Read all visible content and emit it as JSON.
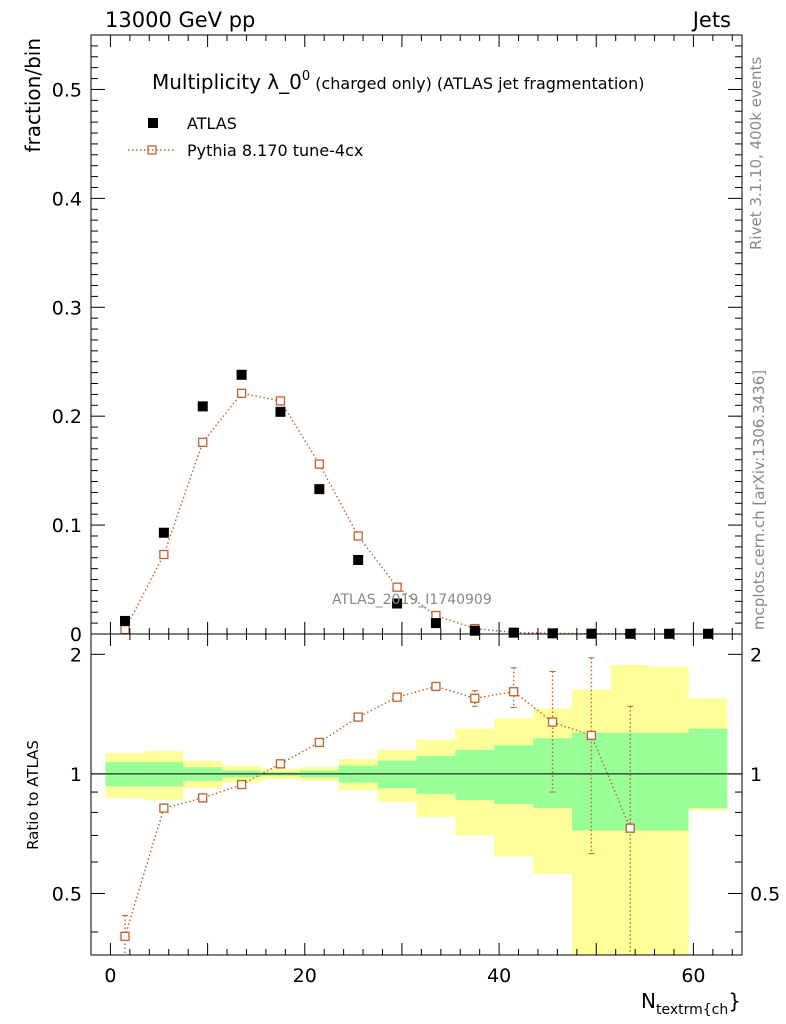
{
  "header": {
    "left": "13000 GeV pp",
    "right": "Jets"
  },
  "side_text": {
    "rivet": "Rivet 3.1.10,  400k events",
    "mcplots": "mcplots.cern.ch [arXiv:1306.3436]"
  },
  "watermark": "ATLAS_2019_I1740909",
  "colors": {
    "mc": "#c0602a",
    "band_inner": "#99ff99",
    "band_outer": "#ffff99",
    "data": "#000000"
  },
  "chart_data": [
    {
      "type": "scatter",
      "title_main": "Multiplicity λ_0",
      "title_sup": "0",
      "title_tail": " (charged only) (ATLAS jet fragmentation)",
      "ylabel": "fraction/bin",
      "xlim": [
        -2,
        65
      ],
      "ylim": [
        0,
        0.55
      ],
      "yticks": [
        0,
        0.1,
        0.2,
        0.3,
        0.4,
        0.5
      ],
      "ytick_labels": [
        "0",
        "0.1",
        "0.2",
        "0.3",
        "0.4",
        "0.5"
      ],
      "legend": [
        {
          "name": "ATLAS",
          "marker": "filled-square"
        },
        {
          "name": "Pythia 8.170 tune-4cx",
          "marker": "open-square-dotted-line"
        }
      ],
      "series": [
        {
          "name": "ATLAS",
          "x": [
            1.5,
            5.5,
            9.5,
            13.5,
            17.5,
            21.5,
            25.5,
            29.5,
            33.5,
            37.5,
            41.5,
            45.5,
            49.5,
            53.5,
            57.5,
            61.5
          ],
          "y": [
            0.012,
            0.093,
            0.209,
            0.238,
            0.204,
            0.133,
            0.068,
            0.028,
            0.01,
            0.003,
            0.0012,
            0.0006,
            0.0003,
            0.0002,
            0.0002,
            0.0002
          ]
        },
        {
          "name": "Pythia 8.170 tune-4cx",
          "x": [
            1.5,
            5.5,
            9.5,
            13.5,
            17.5,
            21.5,
            25.5,
            29.5,
            33.5,
            37.5,
            41.5,
            45.5,
            49.5,
            53.5
          ],
          "y": [
            0.004,
            0.073,
            0.176,
            0.221,
            0.214,
            0.156,
            0.09,
            0.043,
            0.017,
            0.005,
            0.0015,
            0.0006,
            0.0002,
            0.0001
          ]
        }
      ]
    },
    {
      "type": "scatter",
      "ylabel": "Ratio to ATLAS",
      "xlabel_main": "N",
      "xlabel_sub": "textrm{ch",
      "xlabel_tail": "}",
      "xlim": [
        -2,
        65
      ],
      "ylim": [
        0.35,
        2.25
      ],
      "yticks": [
        0.5,
        1,
        2
      ],
      "ytick_labels": [
        "0.5",
        "1",
        "2"
      ],
      "xticks": [
        0,
        20,
        40,
        60
      ],
      "xtick_labels": [
        "0",
        "20",
        "40",
        "60"
      ],
      "bands": {
        "edges": [
          -0.5,
          3.5,
          7.5,
          11.5,
          15.5,
          19.5,
          23.5,
          27.5,
          31.5,
          35.5,
          39.5,
          43.5,
          47.5,
          51.5,
          55.5,
          59.5,
          63.5
        ],
        "inner_lo": [
          0.93,
          0.93,
          0.96,
          0.98,
          0.99,
          0.98,
          0.95,
          0.92,
          0.89,
          0.86,
          0.84,
          0.82,
          0.72,
          0.72,
          0.72,
          0.82
        ],
        "inner_hi": [
          1.07,
          1.07,
          1.04,
          1.02,
          1.01,
          1.02,
          1.05,
          1.08,
          1.11,
          1.15,
          1.18,
          1.23,
          1.27,
          1.27,
          1.27,
          1.3
        ],
        "outer_lo": [
          0.87,
          0.86,
          0.92,
          0.95,
          0.97,
          0.96,
          0.91,
          0.85,
          0.78,
          0.7,
          0.62,
          0.56,
          0.3,
          0.3,
          0.3,
          0.81
        ],
        "outer_hi": [
          1.13,
          1.14,
          1.08,
          1.05,
          1.03,
          1.04,
          1.09,
          1.15,
          1.22,
          1.3,
          1.38,
          1.46,
          1.63,
          1.88,
          1.86,
          1.55
        ]
      },
      "series": [
        {
          "name": "Pythia 8.170 tune-4cx",
          "x": [
            1.5,
            5.5,
            9.5,
            13.5,
            17.5,
            21.5,
            25.5,
            29.5,
            33.5,
            37.5,
            41.5,
            45.5,
            49.5,
            53.5
          ],
          "y": [
            0.39,
            0.82,
            0.87,
            0.94,
            1.06,
            1.2,
            1.39,
            1.56,
            1.66,
            1.55,
            1.61,
            1.35,
            1.25,
            0.73
          ],
          "err_lo": [
            0.04,
            0,
            0,
            0,
            0,
            0,
            0,
            0,
            0.03,
            0.07,
            0.14,
            0.45,
            0.62,
            0.75
          ],
          "err_hi": [
            0.05,
            0,
            0,
            0,
            0,
            0,
            0,
            0,
            0.03,
            0.07,
            0.24,
            0.46,
            0.71,
            0.75
          ]
        }
      ]
    }
  ]
}
